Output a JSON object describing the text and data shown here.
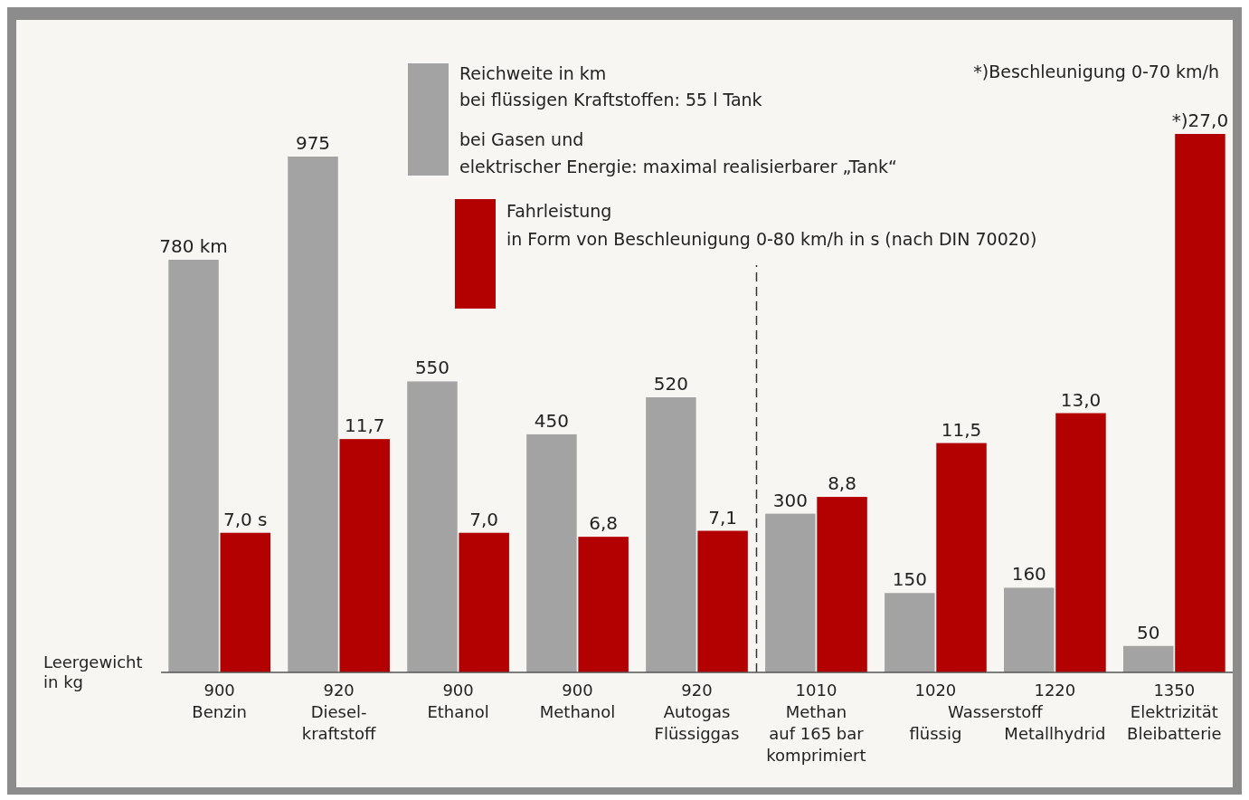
{
  "chart_data": {
    "type": "bar",
    "xlabel": "Leergewicht\nin kg",
    "categories": [
      "900\nBenzin",
      "920\nDiesel-\nkraftstoff",
      "900\nEthanol",
      "900\nMethanol",
      "920\nAutogas\nFlüssiggas",
      "1010\nMethan\nauf 165 bar\nkomprimiert",
      "1020\n\nflüssig",
      "1220\n\nMetallhydrid",
      "1350\nElektrizität\nBleibatterie"
    ],
    "series": [
      {
        "name": "Reichweite in km",
        "color": "#a3a3a3",
        "values": [
          780,
          975,
          550,
          450,
          520,
          300,
          150,
          160,
          50
        ],
        "value_labels": [
          "780 km",
          "975",
          "550",
          "450",
          "520",
          "300",
          "150",
          "160",
          "50"
        ]
      },
      {
        "name": "Fahrleistung",
        "color": "#b30000",
        "axis": "y2",
        "values": [
          7.0,
          11.7,
          7.0,
          6.8,
          7.1,
          8.8,
          11.5,
          13.0,
          27.0
        ],
        "value_labels": [
          "7,0 s",
          "11,7",
          "7,0",
          "6,8",
          "7,1",
          "8,8",
          "11,5",
          "13,0",
          "*)27,0"
        ]
      }
    ],
    "tick_labels": "x",
    "legend": "top",
    "annotations": [
      "bei flüssigen Kraftstoffen: 55 l Tank",
      "bei Gasen und\nelektrischer Energie: maximal realisierbarer „Tank“",
      "in Form von Beschleunigung 0-80 km/h in s (nach DIN 70020)",
      "*)Beschleunigung 0-70 km/h",
      "Wasserstoff"
    ]
  }
}
